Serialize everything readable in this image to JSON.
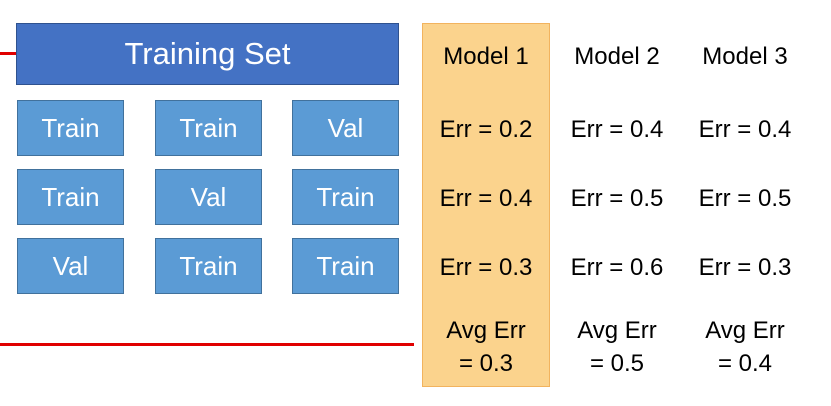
{
  "training_set_label": "Training Set",
  "folds": [
    [
      "Train",
      "Train",
      "Val"
    ],
    [
      "Train",
      "Val",
      "Train"
    ],
    [
      "Val",
      "Train",
      "Train"
    ]
  ],
  "models": [
    {
      "name": "Model 1",
      "errors": [
        "Err = 0.2",
        "Err = 0.4",
        "Err = 0.3"
      ],
      "avg_label": "Avg Err",
      "avg_value": "= 0.3",
      "highlighted": true
    },
    {
      "name": "Model 2",
      "errors": [
        "Err = 0.4",
        "Err = 0.5",
        "Err = 0.6"
      ],
      "avg_label": "Avg Err",
      "avg_value": "= 0.5",
      "highlighted": false
    },
    {
      "name": "Model 3",
      "errors": [
        "Err = 0.4",
        "Err = 0.5",
        "Err = 0.3"
      ],
      "avg_label": "Avg Err",
      "avg_value": "= 0.4",
      "highlighted": false
    }
  ],
  "colors": {
    "training_set": "#4472c4",
    "fold_cell": "#5b9bd5",
    "highlight": "#fbd38d",
    "line": "#e00000"
  }
}
